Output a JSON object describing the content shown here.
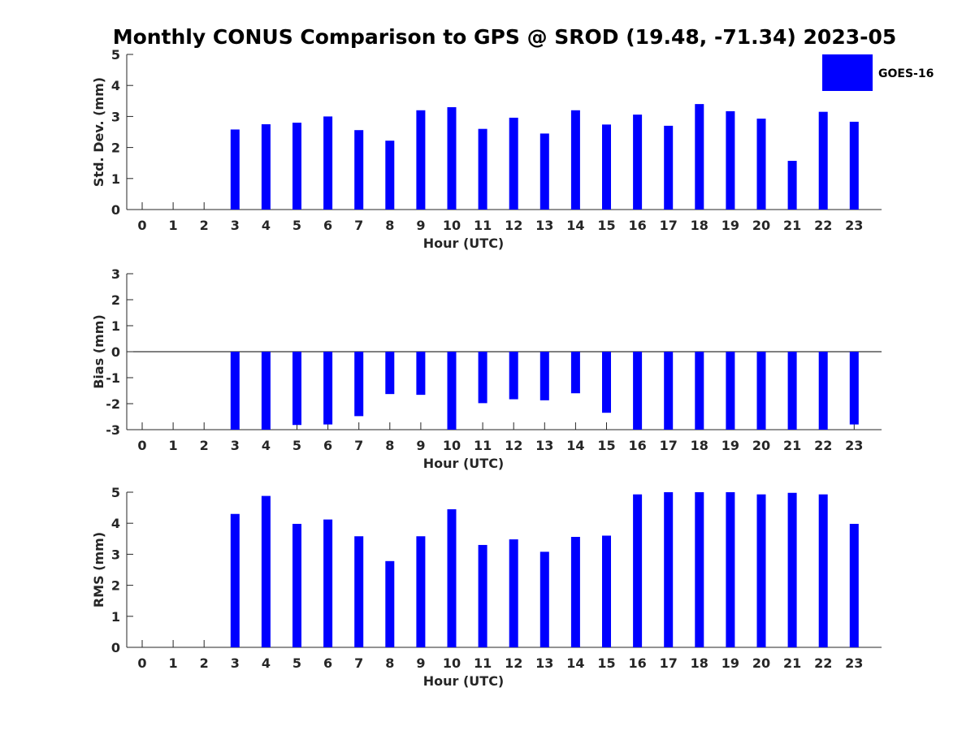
{
  "chart_data": {
    "title": "Monthly CONUS Comparison to GPS @ SROD (19.48, -71.34) 2023-05",
    "legend": {
      "label": "GOES-16",
      "color": "#0000ff",
      "placement": "top-right"
    },
    "bar_color": "#0000ff",
    "panels": [
      {
        "type": "bar",
        "ylabel": "Std. Dev. (mm)",
        "xlabel": "Hour (UTC)",
        "ylim": [
          0,
          5
        ],
        "yticks": [
          0,
          1,
          2,
          3,
          4,
          5
        ],
        "categories": [
          0,
          1,
          2,
          3,
          4,
          5,
          6,
          7,
          8,
          9,
          10,
          11,
          12,
          13,
          14,
          15,
          16,
          17,
          18,
          19,
          20,
          21,
          22,
          23
        ],
        "values": [
          null,
          null,
          null,
          2.58,
          2.75,
          2.8,
          3.0,
          2.56,
          2.22,
          3.2,
          3.3,
          2.6,
          2.96,
          2.45,
          3.2,
          2.74,
          3.06,
          2.7,
          3.4,
          3.17,
          2.93,
          1.57,
          3.15,
          2.83
        ]
      },
      {
        "type": "bar",
        "ylabel": "Bias (mm)",
        "xlabel": "Hour (UTC)",
        "ylim": [
          -3,
          3
        ],
        "yticks": [
          -3,
          -2,
          -1,
          0,
          1,
          2,
          3
        ],
        "categories": [
          0,
          1,
          2,
          3,
          4,
          5,
          6,
          7,
          8,
          9,
          10,
          11,
          12,
          13,
          14,
          15,
          16,
          17,
          18,
          19,
          20,
          21,
          22,
          23
        ],
        "values": [
          null,
          null,
          null,
          -3.0,
          -3.0,
          -2.82,
          -2.8,
          -2.48,
          -1.63,
          -1.66,
          -3.0,
          -1.98,
          -1.83,
          -1.87,
          -1.6,
          -2.35,
          -3.0,
          -3.0,
          -3.0,
          -3.0,
          -3.0,
          -3.0,
          -3.0,
          -2.8
        ]
      },
      {
        "type": "bar",
        "ylabel": "RMS (mm)",
        "xlabel": "Hour (UTC)",
        "ylim": [
          0,
          5
        ],
        "yticks": [
          0,
          1,
          2,
          3,
          4,
          5
        ],
        "categories": [
          0,
          1,
          2,
          3,
          4,
          5,
          6,
          7,
          8,
          9,
          10,
          11,
          12,
          13,
          14,
          15,
          16,
          17,
          18,
          19,
          20,
          21,
          22,
          23
        ],
        "values": [
          null,
          null,
          null,
          4.3,
          4.88,
          3.98,
          4.12,
          3.58,
          2.78,
          3.58,
          4.45,
          3.3,
          3.48,
          3.08,
          3.56,
          3.6,
          4.93,
          5.0,
          5.0,
          5.0,
          4.93,
          4.98,
          4.93,
          3.98
        ]
      }
    ]
  }
}
